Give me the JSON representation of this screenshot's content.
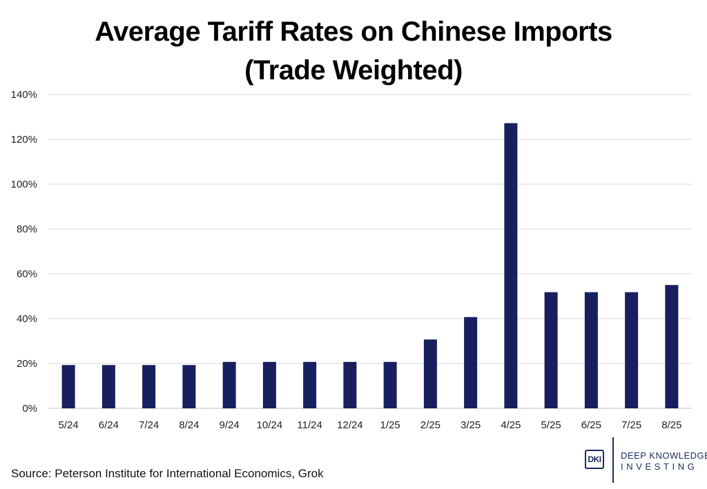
{
  "chart_data": {
    "type": "bar",
    "title_line1": "Average Tariff Rates on Chinese Imports",
    "title_line2": "(Trade Weighted)",
    "xlabel": "",
    "ylabel": "",
    "categories": [
      "5/24",
      "6/24",
      "7/24",
      "8/24",
      "9/24",
      "10/24",
      "11/24",
      "12/24",
      "1/25",
      "2/25",
      "3/25",
      "4/25",
      "5/25",
      "6/25",
      "7/25",
      "8/25"
    ],
    "values": [
      19.3,
      19.3,
      19.3,
      19.3,
      20.7,
      20.7,
      20.7,
      20.7,
      20.7,
      30.7,
      40.7,
      127.2,
      51.8,
      51.8,
      51.8,
      55.0
    ],
    "ylim": [
      0,
      140
    ],
    "yticks": [
      0,
      20,
      40,
      60,
      80,
      100,
      120,
      140
    ],
    "ytick_labels": [
      "0%",
      "20%",
      "40%",
      "60%",
      "80%",
      "100%",
      "120%",
      "140%"
    ],
    "grid": true,
    "legend": "none",
    "bar_color": "#171f5e",
    "grid_color": "#d9d9d9"
  },
  "footer": {
    "source": "Source: Peterson Institute for International Economics, Grok"
  },
  "logo": {
    "mark": "DKI",
    "line1": "DEEP KNOWLEDGE",
    "line2": "INVESTING",
    "color": "#1b2a5c"
  }
}
